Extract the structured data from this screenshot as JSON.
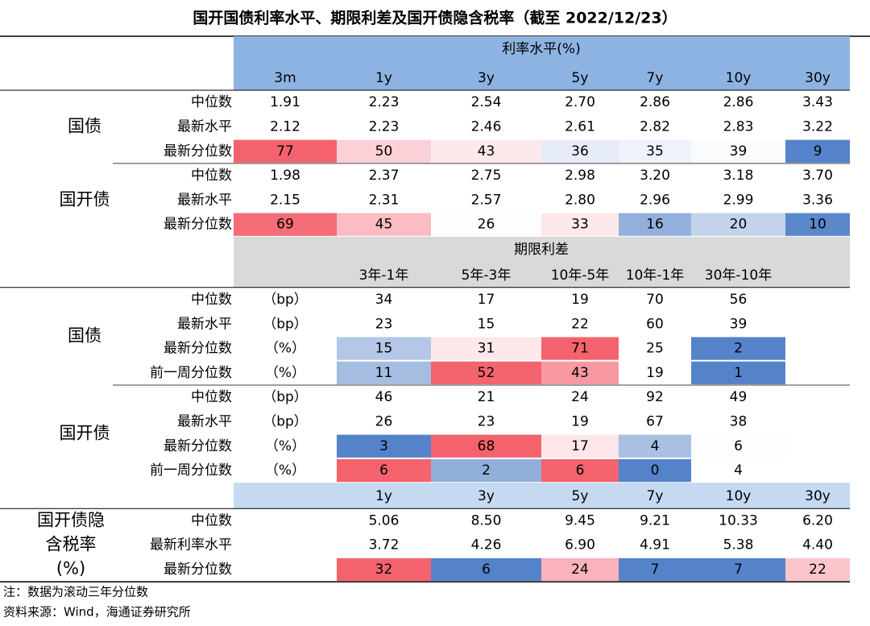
{
  "title": "国开国债利率水平、期限利差及国开债隐含税率（截至 2022/12/23）",
  "sections": [
    {
      "header": "利率水平(%)",
      "columns": [
        "3m",
        "1y",
        "3y",
        "5y",
        "7y",
        "10y",
        "30y"
      ],
      "groups": [
        {
          "label": "国债",
          "rows": [
            {
              "label": "中位数",
              "values": [
                "1.91",
                "2.23",
                "2.54",
                "2.70",
                "2.86",
                "2.86",
                "3.43"
              ]
            },
            {
              "label": "最新水平",
              "values": [
                "2.12",
                "2.23",
                "2.46",
                "2.61",
                "2.82",
                "2.83",
                "3.22"
              ]
            },
            {
              "label": "最新分位数",
              "values": [
                "77",
                "50",
                "43",
                "36",
                "35",
                "39",
                "9"
              ],
              "colors": [
                "#f4636d",
                "#fbd0d6",
                "#fde9ec",
                "#e6ecf7",
                "#eef2fa",
                "#fafbfd",
                "#5583c9"
              ]
            }
          ]
        },
        {
          "label": "国开债",
          "rows": [
            {
              "label": "中位数",
              "values": [
                "1.98",
                "2.37",
                "2.75",
                "2.98",
                "3.20",
                "3.18",
                "3.70"
              ]
            },
            {
              "label": "最新水平",
              "values": [
                "2.15",
                "2.31",
                "2.57",
                "2.80",
                "2.96",
                "2.99",
                "3.36"
              ]
            },
            {
              "label": "最新分位数",
              "values": [
                "69",
                "45",
                "26",
                "33",
                "16",
                "20",
                "10"
              ],
              "colors": [
                "#f56d76",
                "#fbbcc4",
                "#fdfdfe",
                "#fde8eb",
                "#93b0dd",
                "#c3d3ec",
                "#5b87cb"
              ]
            }
          ]
        }
      ]
    },
    {
      "header": "期限利差",
      "columns": [
        "3年-1年",
        "5年-3年",
        "10年-5年",
        "10年-1年",
        "30年-10年"
      ],
      "groups": [
        {
          "label": "国债",
          "rows": [
            {
              "label": "中位数",
              "unit": "（bp）",
              "values": [
                "34",
                "17",
                "19",
                "70",
                "56"
              ]
            },
            {
              "label": "最新水平",
              "unit": "（bp）",
              "values": [
                "23",
                "15",
                "22",
                "60",
                "39"
              ]
            },
            {
              "label": "最新分位数",
              "unit": "（%）",
              "values": [
                "15",
                "31",
                "71",
                "25",
                "2"
              ],
              "colors": [
                "#b4c7e7",
                "#fde8eb",
                "#f4636d",
                "#ffffff",
                "#5583c9"
              ]
            },
            {
              "label": "前一周分位数",
              "unit": "（%）",
              "values": [
                "11",
                "52",
                "43",
                "19",
                "1"
              ],
              "colors": [
                "#a6bde2",
                "#f4646e",
                "#f899a2",
                "#ffffff",
                "#5583c9"
              ]
            }
          ]
        },
        {
          "label": "国开债",
          "rows": [
            {
              "label": "中位数",
              "unit": "（bp）",
              "values": [
                "46",
                "21",
                "24",
                "92",
                "49"
              ]
            },
            {
              "label": "最新水平",
              "unit": "（bp）",
              "values": [
                "26",
                "23",
                "19",
                "67",
                "38"
              ]
            },
            {
              "label": "最新分位数",
              "unit": "（%）",
              "values": [
                "3",
                "68",
                "17",
                "4",
                "6"
              ],
              "colors": [
                "#5583c9",
                "#f4636d",
                "#fde6e9",
                "#a9c0e3",
                "#fcfdfe"
              ]
            },
            {
              "label": "前一周分位数",
              "unit": "（%）",
              "values": [
                "6",
                "2",
                "6",
                "0",
                "4"
              ],
              "colors": [
                "#f4636d",
                "#92afdc",
                "#f4636d",
                "#5583c9",
                "#ffffff"
              ]
            }
          ]
        }
      ]
    },
    {
      "columns": [
        "1y",
        "3y",
        "5y",
        "7y",
        "10y",
        "30y"
      ],
      "groups": [
        {
          "label_lines": [
            "国开债隐",
            "含税率",
            "(%)"
          ],
          "rows": [
            {
              "label": "中位数",
              "values": [
                "5.06",
                "8.50",
                "9.45",
                "9.21",
                "10.33",
                "6.20"
              ]
            },
            {
              "label": "最新利率水平",
              "values": [
                "3.72",
                "4.26",
                "6.90",
                "4.91",
                "5.38",
                "4.40"
              ]
            },
            {
              "label": "最新分位数",
              "values": [
                "32",
                "6",
                "24",
                "7",
                "7",
                "22"
              ],
              "colors": [
                "#f4636d",
                "#5583c9",
                "#fab3bb",
                "#5583c9",
                "#5583c9",
                "#fbc5cc"
              ]
            }
          ]
        }
      ]
    }
  ],
  "notes": [
    "注：数据为滚动三年分位数",
    "资料来源：Wind，海通证券研究所"
  ]
}
